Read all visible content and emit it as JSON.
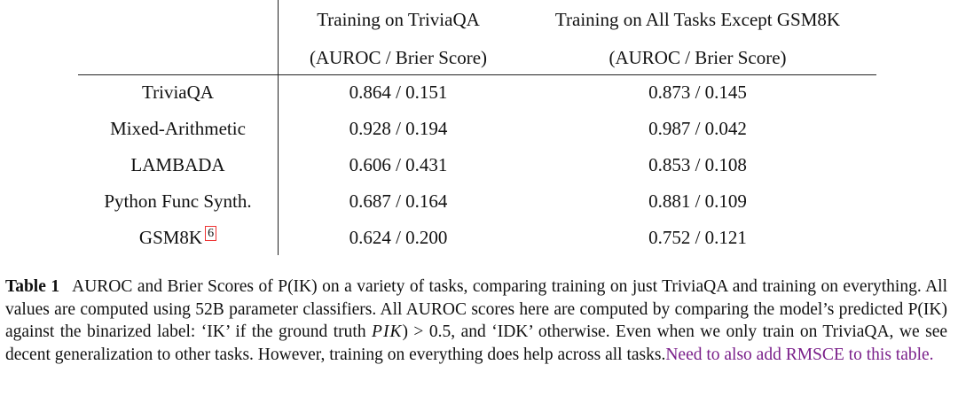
{
  "table": {
    "headers": [
      {
        "title": "Training on TriviaQA",
        "subtitle": "(AUROC / Brier Score)"
      },
      {
        "title": "Training on All Tasks Except GSM8K",
        "subtitle": "(AUROC / Brier Score)"
      }
    ],
    "rows": [
      {
        "label": "TriviaQA",
        "cells": [
          "0.864 / 0.151",
          "0.873 / 0.145"
        ]
      },
      {
        "label": "Mixed-Arithmetic",
        "cells": [
          "0.928 / 0.194",
          "0.987 / 0.042"
        ]
      },
      {
        "label": "LAMBADA",
        "cells": [
          "0.606 / 0.431",
          "0.853 / 0.108"
        ]
      },
      {
        "label": "Python Func Synth.",
        "cells": [
          "0.687 / 0.164",
          "0.881 / 0.109"
        ]
      },
      {
        "label": "GSM8K",
        "footnote": "6",
        "cells": [
          "0.624 / 0.200",
          "0.752 / 0.121"
        ]
      }
    ]
  },
  "caption": {
    "label": "Table 1",
    "text_before_math": "AUROC and Brier Scores of P(IK) on a variety of tasks, comparing training on just TriviaQA and training on everything. All values are computed using 52B parameter classifiers. All AUROC scores here are computed by comparing the model’s predicted P(IK) against the binarized label: ‘IK’ if the ground truth",
    "math": "PIK",
    "text_after_math": ") > 0.5, and ‘IDK’ otherwise. Even when we only train on TriviaQA, we see decent generalization to other tasks. However, training on everything does help across all tasks.",
    "note": "Need to also add RMSCE to this table."
  }
}
